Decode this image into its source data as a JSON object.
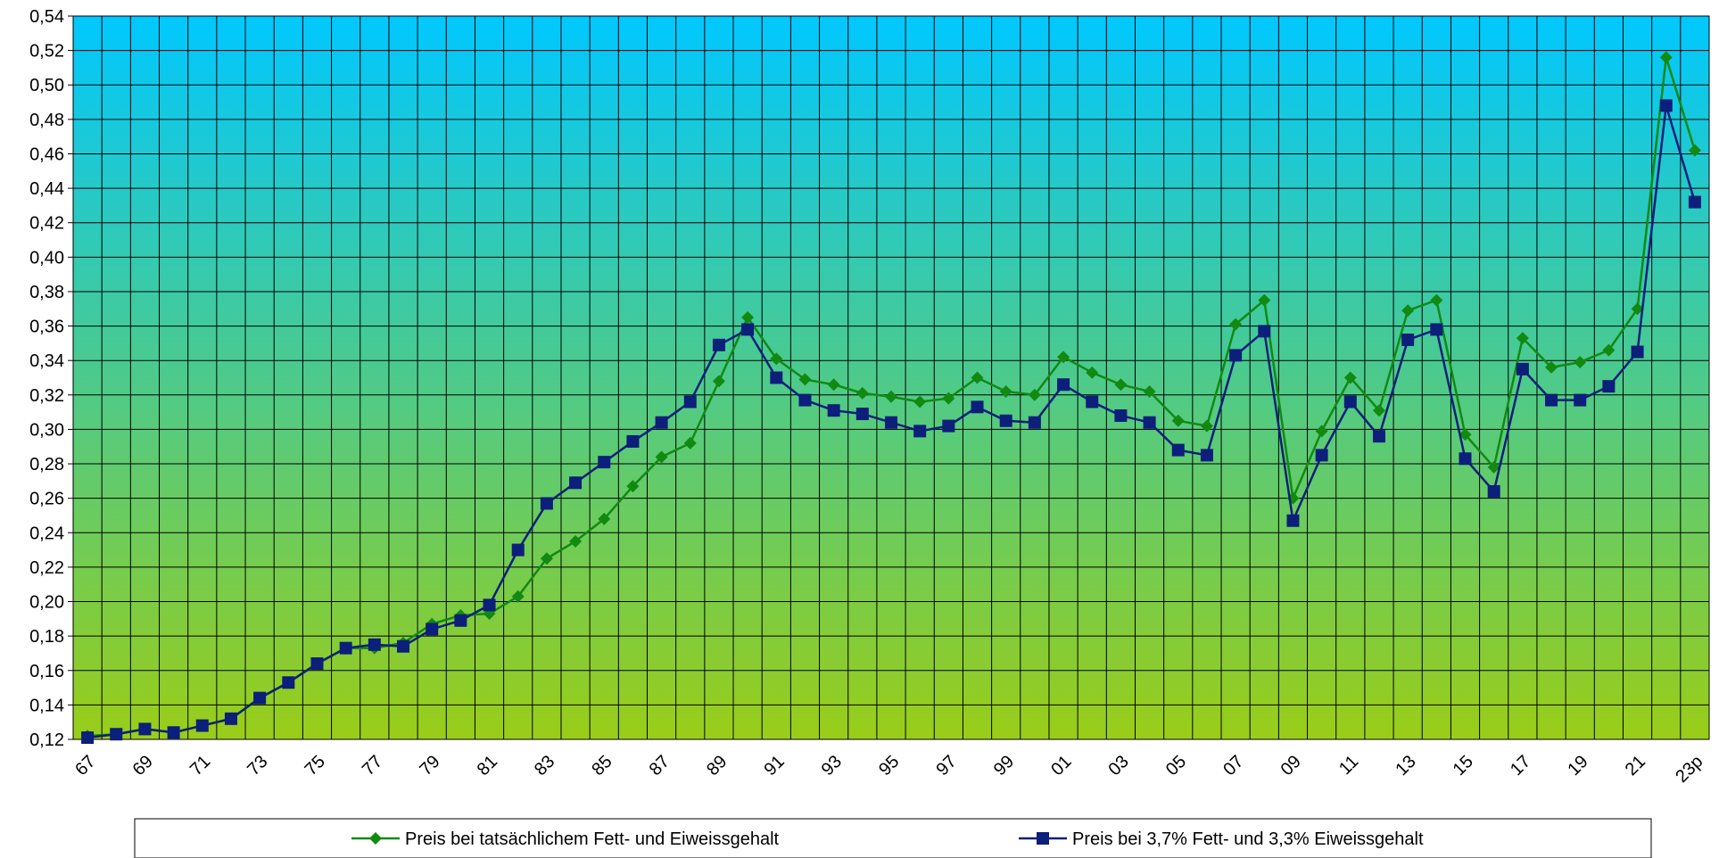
{
  "chart_data": {
    "type": "line",
    "title": "",
    "xlabel": "",
    "ylabel": "",
    "ylim": [
      0.12,
      0.54
    ],
    "ytick_step": 0.02,
    "grid": true,
    "legend_position": "bottom",
    "background_gradient": [
      "#00c8ff",
      "#9acd18"
    ],
    "x": [
      "67",
      "68",
      "69",
      "70",
      "71",
      "72",
      "73",
      "74",
      "75",
      "76",
      "77",
      "78",
      "79",
      "80",
      "81",
      "82",
      "83",
      "84",
      "85",
      "86",
      "87",
      "88",
      "89",
      "90",
      "91",
      "92",
      "93",
      "94",
      "95",
      "96",
      "97",
      "98",
      "99",
      "00",
      "01",
      "02",
      "03",
      "04",
      "05",
      "06",
      "07",
      "08",
      "09",
      "10",
      "11",
      "12",
      "13",
      "14",
      "15",
      "16",
      "17",
      "18",
      "19",
      "20",
      "21",
      "22",
      "23p"
    ],
    "x_tick_labels": [
      "67",
      "69",
      "71",
      "73",
      "75",
      "77",
      "79",
      "81",
      "83",
      "85",
      "87",
      "89",
      "91",
      "93",
      "95",
      "97",
      "99",
      "01",
      "03",
      "05",
      "07",
      "09",
      "11",
      "13",
      "15",
      "17",
      "19",
      "21",
      "23p"
    ],
    "x_tick_label_indices": [
      0,
      2,
      4,
      6,
      8,
      10,
      12,
      14,
      16,
      18,
      20,
      22,
      24,
      26,
      28,
      30,
      32,
      34,
      36,
      38,
      40,
      42,
      44,
      46,
      48,
      50,
      52,
      54,
      56
    ],
    "series": [
      {
        "name": "Preis bei tatsächlichem Fett- und Eiweissgehalt",
        "color": "#128a12",
        "marker": "diamond",
        "values": [
          0.122,
          0.123,
          0.126,
          0.124,
          0.128,
          0.132,
          0.144,
          0.153,
          0.164,
          0.173,
          0.173,
          0.176,
          0.187,
          0.192,
          0.193,
          0.203,
          0.225,
          0.235,
          0.248,
          0.267,
          0.284,
          0.292,
          0.328,
          0.365,
          0.341,
          0.329,
          0.326,
          0.321,
          0.319,
          0.316,
          0.318,
          0.33,
          0.322,
          0.32,
          0.342,
          0.333,
          0.326,
          0.322,
          0.305,
          0.302,
          0.361,
          0.375,
          0.26,
          0.299,
          0.33,
          0.311,
          0.369,
          0.375,
          0.297,
          0.278,
          0.353,
          0.336,
          0.339,
          0.346,
          0.37,
          0.516,
          0.462
        ]
      },
      {
        "name": "Preis bei 3,7% Fett- und 3,3% Eiweissgehalt",
        "color": "#0c1f7a",
        "marker": "square",
        "values": [
          0.121,
          0.123,
          0.126,
          0.124,
          0.128,
          0.132,
          0.144,
          0.153,
          0.164,
          0.173,
          0.175,
          0.174,
          0.184,
          0.189,
          0.198,
          0.23,
          0.257,
          0.269,
          0.281,
          0.293,
          0.304,
          0.316,
          0.349,
          0.358,
          0.33,
          0.317,
          0.311,
          0.309,
          0.304,
          0.299,
          0.302,
          0.313,
          0.305,
          0.304,
          0.326,
          0.316,
          0.308,
          0.304,
          0.288,
          0.285,
          0.343,
          0.357,
          0.247,
          0.285,
          0.316,
          0.296,
          0.352,
          0.358,
          0.283,
          0.264,
          0.335,
          0.317,
          0.317,
          0.325,
          0.345,
          0.488,
          0.432
        ]
      }
    ]
  }
}
